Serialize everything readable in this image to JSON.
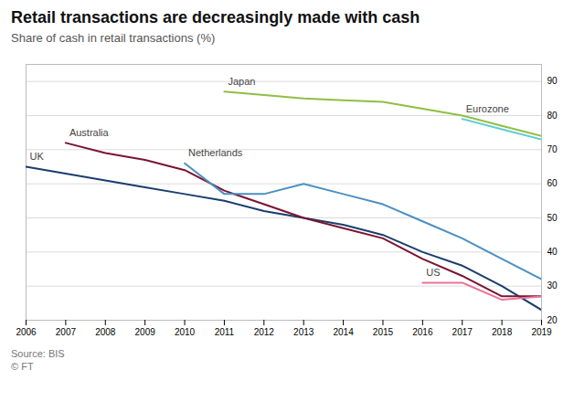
{
  "chart_data": {
    "type": "line",
    "title": "Retail transactions are decreasingly made with cash",
    "subtitle": "Share of cash in retail transactions (%)",
    "annotations": [
      "Source: BIS",
      "© FT"
    ],
    "x": [
      2006,
      2007,
      2008,
      2009,
      2010,
      2011,
      2012,
      2013,
      2014,
      2015,
      2016,
      2017,
      2018,
      2019
    ],
    "xlim": [
      2006,
      2019
    ],
    "xticks": [
      2006,
      2007,
      2008,
      2009,
      2010,
      2011,
      2012,
      2013,
      2014,
      2015,
      2016,
      2017,
      2018,
      2019
    ],
    "ylim": [
      20,
      95
    ],
    "yticks": [
      20,
      30,
      40,
      50,
      60,
      70,
      80,
      90
    ],
    "grid": true,
    "series": [
      {
        "name": "UK",
        "color": "#1a3d6e",
        "values": [
          65,
          63,
          61,
          59,
          57,
          55,
          52,
          50,
          48,
          45,
          40,
          36,
          30,
          23
        ]
      },
      {
        "name": "Australia",
        "color": "#7b1430",
        "values": [
          null,
          72,
          69,
          67,
          64,
          58,
          54,
          50,
          47,
          44,
          38,
          33,
          27,
          27
        ]
      },
      {
        "name": "Netherlands",
        "color": "#4a90c4",
        "values": [
          null,
          null,
          null,
          null,
          66,
          57,
          57,
          60,
          57,
          54,
          49,
          44,
          38,
          32
        ]
      },
      {
        "name": "Japan",
        "color": "#8fbe45",
        "values": [
          null,
          null,
          null,
          null,
          null,
          87,
          86,
          85,
          84.5,
          84,
          82,
          80,
          77,
          74
        ]
      },
      {
        "name": "Eurozone",
        "color": "#5ecfcf",
        "values": [
          null,
          null,
          null,
          null,
          null,
          null,
          null,
          null,
          null,
          null,
          null,
          79,
          76,
          73
        ]
      },
      {
        "name": "US",
        "color": "#e8739a",
        "values": [
          null,
          null,
          null,
          null,
          null,
          null,
          null,
          null,
          null,
          null,
          31,
          31,
          26,
          27
        ]
      }
    ]
  }
}
